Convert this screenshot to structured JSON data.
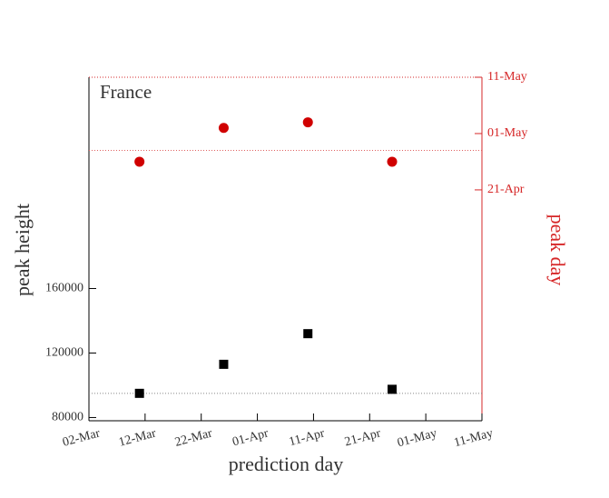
{
  "chart_data": {
    "type": "scatter",
    "annotation": "France",
    "xlabel": "prediction day",
    "ylabel": "peak height",
    "y2label": "peak day",
    "xlim": [
      "02-Mar",
      "11-May"
    ],
    "xticks": [
      "02-Mar",
      "12-Mar",
      "22-Mar",
      "01-Apr",
      "11-Apr",
      "21-Apr",
      "01-May",
      "11-May"
    ],
    "ylim": [
      78000,
      291000
    ],
    "yticks": [
      80000,
      120000,
      160000
    ],
    "y2lim": [
      "11-Mar",
      "11-May"
    ],
    "y2ticks": [
      "21-Apr",
      "01-May",
      "11-May"
    ],
    "axis_color": "#000000",
    "y2_color": "#d62728",
    "series": [
      {
        "marker": "square",
        "color": "#000000",
        "axis": "y",
        "x": [
          "11-Mar",
          "26-Mar",
          "10-Apr",
          "25-Apr"
        ],
        "values": [
          95000,
          113000,
          132000,
          97500
        ]
      },
      {
        "marker": "circle",
        "color": "#d00000",
        "axis": "y2",
        "x": [
          "11-Mar",
          "26-Mar",
          "10-Apr",
          "25-Apr"
        ],
        "values": [
          "26-Apr",
          "02-May",
          "03-May",
          "26-Apr"
        ]
      }
    ],
    "reference_lines": [
      {
        "axis": "y",
        "value": 95000,
        "color": "#888888"
      },
      {
        "axis": "y2",
        "value": "28-Apr",
        "color": "#e06060"
      }
    ]
  }
}
